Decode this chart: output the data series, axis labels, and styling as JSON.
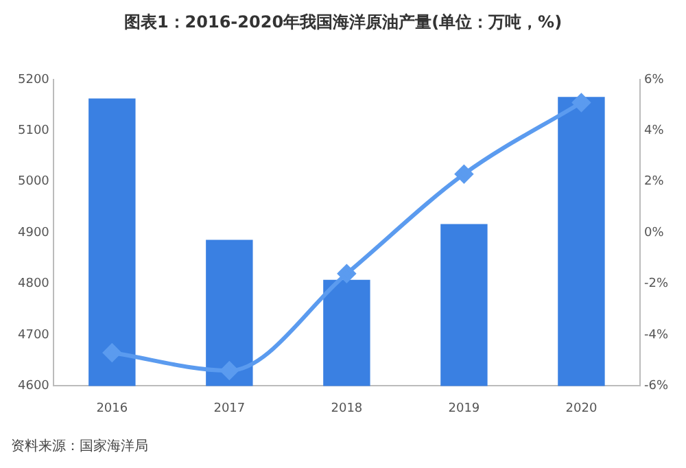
{
  "chart_data": {
    "type": "bar",
    "title": "图表1：2016-2020年我国海洋原油产量(单位：万吨，%)",
    "categories": [
      "2016",
      "2017",
      "2018",
      "2019",
      "2020"
    ],
    "series": [
      {
        "color": "#3a80e2",
        "values": [
          5163,
          4886,
          4808,
          4917,
          5166
        ]
      },
      {
        "type": "line",
        "axis": "y2",
        "color": "#5b9bef",
        "marker": "diamond",
        "values": [
          -4.7,
          -5.4,
          -1.6,
          2.3,
          5.1
        ]
      }
    ],
    "ylim": [
      4600,
      5200
    ],
    "yticks": [
      4600,
      4700,
      4800,
      4900,
      5000,
      5100,
      5200
    ],
    "y2lim": [
      -6,
      6
    ],
    "y2ticks": [
      {
        "value": -6,
        "label": "-6%"
      },
      {
        "value": -4,
        "label": "-4%"
      },
      {
        "value": -2,
        "label": "-2%"
      },
      {
        "value": 0,
        "label": "0%"
      },
      {
        "value": 2,
        "label": "2%"
      },
      {
        "value": 4,
        "label": "4%"
      },
      {
        "value": 6,
        "label": "6%"
      }
    ],
    "grid": false,
    "legend": false,
    "annotations": [
      "资料来源：国家海洋局"
    ]
  }
}
